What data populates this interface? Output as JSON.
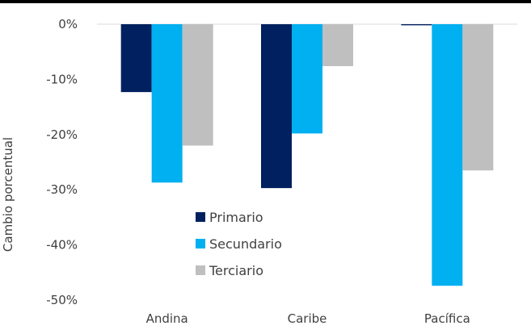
{
  "chart_data": {
    "type": "bar",
    "title": "",
    "xlabel": "",
    "ylabel": "Cambio porcentual",
    "categories": [
      "Andina",
      "Caribe",
      "Pacífica"
    ],
    "series": [
      {
        "name": "Primario",
        "color": "#002060",
        "values": [
          -12.3,
          -29.7,
          -0.2
        ]
      },
      {
        "name": "Secundario",
        "color": "#00B0F0",
        "values": [
          -28.7,
          -19.8,
          -47.4
        ]
      },
      {
        "name": "Terciario",
        "color": "#BFBFBF",
        "values": [
          -22.0,
          -7.6,
          -26.5
        ]
      }
    ],
    "yticks": [
      "0%",
      "-10%",
      "-20%",
      "-30%",
      "-40%",
      "-50%"
    ],
    "ytick_values": [
      0,
      -10,
      -20,
      -30,
      -40,
      -50
    ],
    "ylim": [
      -50,
      0
    ],
    "grid": false,
    "legend_position": "bottom-center"
  }
}
